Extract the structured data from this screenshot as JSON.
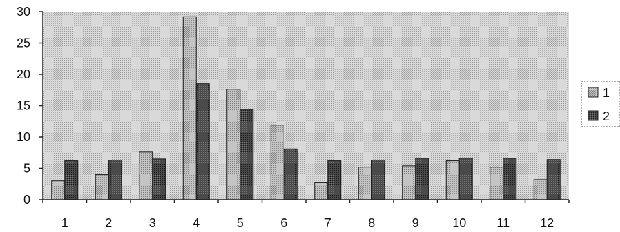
{
  "chart_data": {
    "type": "bar",
    "title": "",
    "xlabel": "",
    "ylabel": "",
    "categories": [
      "1",
      "2",
      "3",
      "4",
      "5",
      "6",
      "7",
      "8",
      "9",
      "10",
      "11",
      "12"
    ],
    "series": [
      {
        "name": "1",
        "values": [
          3.0,
          4.0,
          7.6,
          29.2,
          17.6,
          11.9,
          2.7,
          5.2,
          5.4,
          6.2,
          5.2,
          3.2
        ],
        "color": "#b4b4b4"
      },
      {
        "name": "2",
        "values": [
          6.2,
          6.3,
          6.5,
          18.5,
          14.4,
          8.1,
          6.2,
          6.3,
          6.6,
          6.6,
          6.6,
          6.4
        ],
        "color": "#3f3f3f"
      }
    ],
    "ylim": [
      0,
      30
    ],
    "yticks": [
      0,
      5,
      10,
      15,
      20,
      25,
      30
    ],
    "grid": false,
    "legend_position": "right",
    "plot_background": "#c8c8c8"
  }
}
